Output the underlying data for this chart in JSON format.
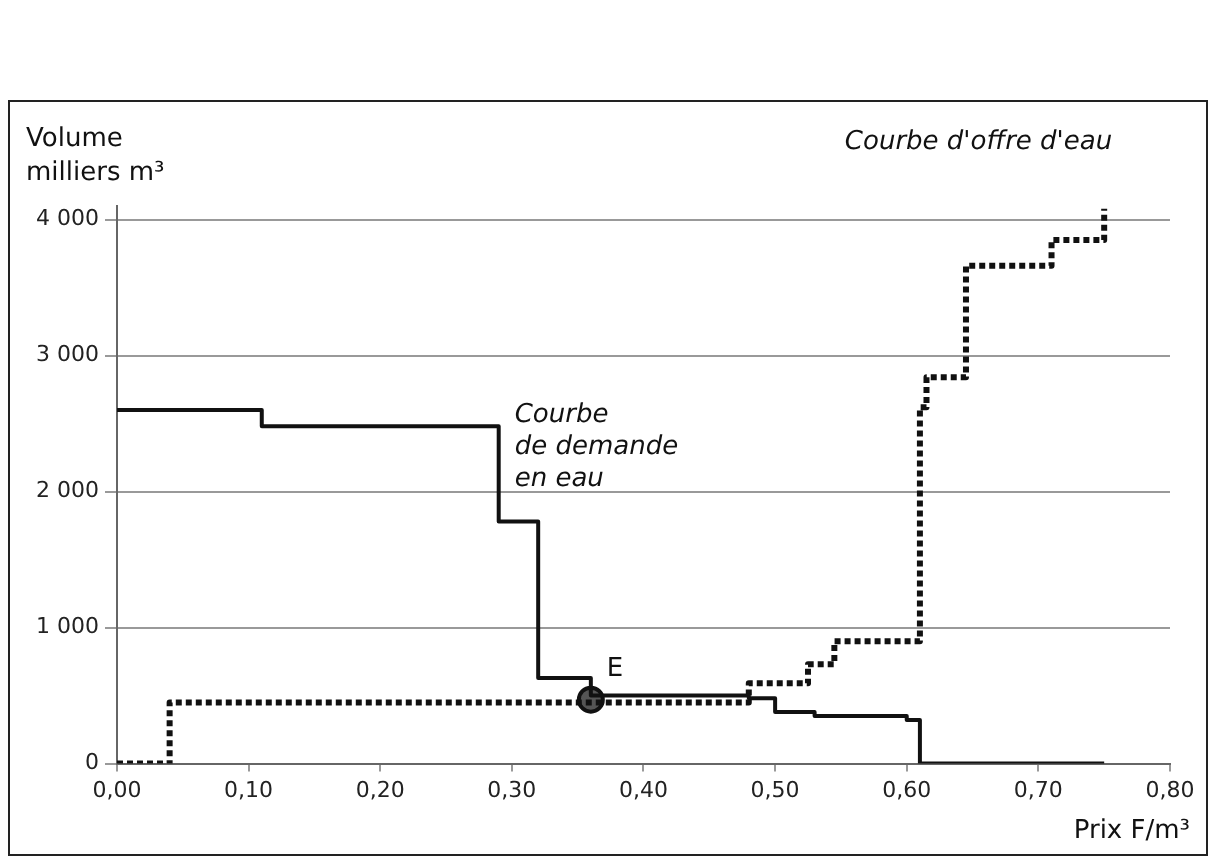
{
  "chart_data": {
    "type": "step",
    "xlabel": "Prix F/m³",
    "ylabel": "Volume\nmilliers m³",
    "xlim": [
      0,
      0.8
    ],
    "ylim": [
      0,
      4100
    ],
    "xticks": [
      {
        "value": 0,
        "label": "0,00"
      },
      {
        "value": 0.1,
        "label": "0,10"
      },
      {
        "value": 0.2,
        "label": "0,20"
      },
      {
        "value": 0.3,
        "label": "0,30"
      },
      {
        "value": 0.4,
        "label": "0,40"
      },
      {
        "value": 0.5,
        "label": "0,50"
      },
      {
        "value": 0.6,
        "label": "0,60"
      },
      {
        "value": 0.7,
        "label": "0,70"
      },
      {
        "value": 0.8,
        "label": "0,80"
      }
    ],
    "yticks": [
      0,
      {
        "value": 1000,
        "label": "1 000"
      },
      {
        "value": 2000,
        "label": "2 000"
      },
      {
        "value": 3000,
        "label": "3 000"
      },
      {
        "value": 4000,
        "label": "4 000"
      }
    ],
    "grid": "y",
    "marker": "none",
    "series": [
      {
        "name": "Courbe de demande en eau",
        "color": "#111111",
        "line_style": "solid",
        "x": [
          0,
          0.11,
          0.29,
          0.32,
          0.36,
          0.48,
          0.5,
          0.53,
          0.6,
          0.61,
          0.75
        ],
        "values": [
          2600,
          2480,
          1780,
          630,
          500,
          480,
          380,
          350,
          320,
          0,
          0
        ]
      },
      {
        "name": "Courbe d'offre d'eau",
        "color": "#111111",
        "line_style": "dotted",
        "x": [
          0,
          0.04,
          0.48,
          0.525,
          0.545,
          0.61,
          0.615,
          0.645,
          0.71,
          0.75
        ],
        "values": [
          0,
          450,
          590,
          730,
          900,
          2620,
          2840,
          3660,
          3850,
          4080
        ]
      },
      {
        "type": "scatter",
        "color": "#111111",
        "marker": "circle",
        "x": [
          0.36
        ],
        "values": [
          470
        ]
      }
    ],
    "annotations": [
      {
        "text": "E",
        "x": 0.36,
        "y": 470
      }
    ]
  }
}
